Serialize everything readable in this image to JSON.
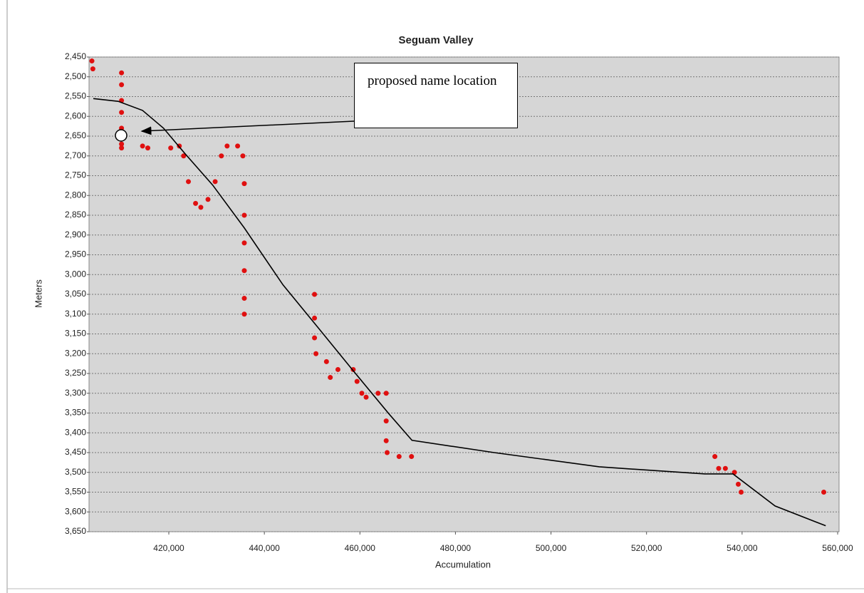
{
  "chart_data": {
    "type": "scatter",
    "title": "Seguam Valley",
    "x_label": "Accumulation",
    "y_label": "Meters",
    "annotation": "proposed name location",
    "xlim": [
      403300,
      560300
    ],
    "xticks": [
      {
        "value": 420000,
        "label": "420,000"
      },
      {
        "value": 440000,
        "label": "440,000"
      },
      {
        "value": 460000,
        "label": "460,000"
      },
      {
        "value": 480000,
        "label": "480,000"
      },
      {
        "value": 500000,
        "label": "500,000"
      },
      {
        "value": 520000,
        "label": "520,000"
      },
      {
        "value": 540000,
        "label": "540,000"
      },
      {
        "value": 560000,
        "label": "560,000"
      }
    ],
    "ylim": [
      2450,
      3650
    ],
    "y_reversed": true,
    "yticks": [
      {
        "value": 2450,
        "label": "2,450"
      },
      {
        "value": 2500,
        "label": "2,500"
      },
      {
        "value": 2550,
        "label": "2,550"
      },
      {
        "value": 2600,
        "label": "2,600"
      },
      {
        "value": 2650,
        "label": "2,650"
      },
      {
        "value": 2700,
        "label": "2,700"
      },
      {
        "value": 2750,
        "label": "2,750"
      },
      {
        "value": 2800,
        "label": "2,800"
      },
      {
        "value": 2850,
        "label": "2,850"
      },
      {
        "value": 2900,
        "label": "2,900"
      },
      {
        "value": 2950,
        "label": "2,950"
      },
      {
        "value": 3000,
        "label": "3,000"
      },
      {
        "value": 3050,
        "label": "3,050"
      },
      {
        "value": 3100,
        "label": "3,100"
      },
      {
        "value": 3150,
        "label": "3,150"
      },
      {
        "value": 3200,
        "label": "3,200"
      },
      {
        "value": 3250,
        "label": "3,250"
      },
      {
        "value": 3300,
        "label": "3,300"
      },
      {
        "value": 3350,
        "label": "3,350"
      },
      {
        "value": 3400,
        "label": "3,400"
      },
      {
        "value": 3450,
        "label": "3,450"
      },
      {
        "value": 3500,
        "label": "3,500"
      },
      {
        "value": 3550,
        "label": "3,550"
      },
      {
        "value": 3600,
        "label": "3,600"
      },
      {
        "value": 3650,
        "label": "3,650"
      }
    ],
    "grid": true,
    "background": "#d6d6d6",
    "series": [
      {
        "style": "markers",
        "color": "#e01010",
        "x": [
          403900,
          404100,
          410100,
          410100,
          410100,
          410100,
          410100,
          410100,
          410100,
          414500,
          415600,
          420400,
          422200,
          423100,
          424100,
          425600,
          426700,
          428200,
          429700,
          431000,
          432200,
          434400,
          435500,
          435800,
          435800,
          435800,
          435800,
          435800,
          435800,
          450500,
          450500,
          450500,
          450800,
          453000,
          453800,
          455400,
          458600,
          459400,
          460400,
          461300,
          463800,
          465500,
          465500,
          465500,
          465700,
          468200,
          470800,
          534300,
          535100,
          536500,
          538400,
          539200,
          539800,
          557100
        ],
        "values": [
          2460,
          2480,
          2490,
          2520,
          2560,
          2590,
          2630,
          2670,
          2680,
          2675,
          2680,
          2680,
          2675,
          2700,
          2765,
          2820,
          2830,
          2810,
          2765,
          2700,
          2675,
          2675,
          2700,
          2770,
          2850,
          2920,
          2990,
          3060,
          3100,
          3050,
          3110,
          3160,
          3200,
          3220,
          3260,
          3240,
          3240,
          3270,
          3300,
          3310,
          3300,
          3300,
          3370,
          3420,
          3450,
          3460,
          3460,
          3460,
          3490,
          3490,
          3500,
          3530,
          3550,
          3550
        ]
      },
      {
        "style": "line",
        "color": "#000000",
        "x": [
          404200,
          409400,
          414500,
          418900,
          423300,
          429200,
          435800,
          443900,
          451300,
          458600,
          466000,
          470900,
          488100,
          510100,
          532200,
          538100,
          546900,
          557500
        ],
        "values": [
          2555,
          2562,
          2585,
          2630,
          2693,
          2774,
          2882,
          3026,
          3135,
          3243,
          3351,
          3419,
          3450,
          3486,
          3504,
          3504,
          3585,
          3635
        ]
      }
    ]
  }
}
